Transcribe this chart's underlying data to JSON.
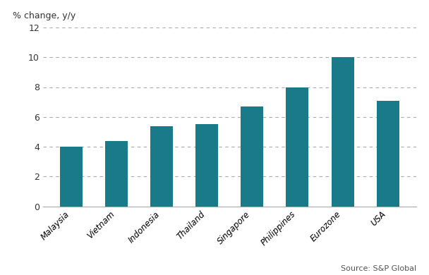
{
  "categories": [
    "Malaysia",
    "Vietnam",
    "Indonesia",
    "Thailand",
    "Singapore",
    "Philippines",
    "Eurozone",
    "USA"
  ],
  "values": [
    4.0,
    4.4,
    5.35,
    5.5,
    6.7,
    8.0,
    10.0,
    7.1
  ],
  "bar_color": "#1a7a8a",
  "ylabel": "% change, y/y",
  "ylim": [
    0,
    12
  ],
  "yticks": [
    0,
    2,
    4,
    6,
    8,
    10,
    12
  ],
  "source_text": "Source: S&P Global",
  "grid_color": "#aaaaaa",
  "background_color": "#ffffff",
  "bar_width": 0.5
}
